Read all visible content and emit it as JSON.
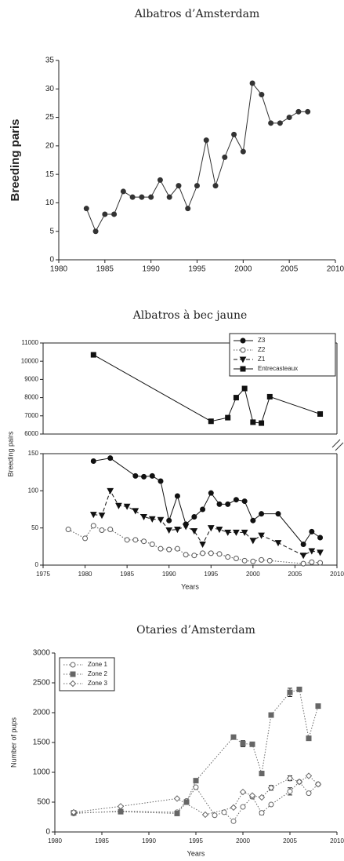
{
  "chart_data": [
    {
      "type": "line",
      "title": "Albatros d’Amsterdam",
      "ylabel": "Breeding paris",
      "xlim": [
        1980,
        2010
      ],
      "xticks": [
        1980,
        1985,
        1990,
        1995,
        2000,
        2005,
        2010
      ],
      "ylim": [
        0,
        35
      ],
      "yticks": [
        0,
        5,
        10,
        15,
        20,
        25,
        30,
        35
      ],
      "series": [
        {
          "color": "#333333",
          "marker": "circle",
          "dash": "solid",
          "x": [
            1983,
            1984,
            1985,
            1986,
            1987,
            1988,
            1989,
            1990,
            1991,
            1992,
            1993,
            1994,
            1995,
            1996,
            1997,
            1998,
            1999,
            2000,
            2001,
            2002,
            2003,
            2004,
            2005,
            2006,
            2007
          ],
          "values": [
            9,
            5,
            8,
            8,
            12,
            11,
            11,
            11,
            14,
            11,
            13,
            9,
            13,
            21,
            13,
            18,
            22,
            19,
            31,
            29,
            24,
            24,
            25,
            26,
            26
          ]
        }
      ]
    },
    {
      "type": "line",
      "title": "Albatros à bec jaune",
      "ylabel": "Breeding pairs",
      "xlabel": "Years",
      "xlim": [
        1975,
        2010
      ],
      "xticks": [
        1975,
        1980,
        1985,
        1990,
        1995,
        2000,
        2005,
        2010
      ],
      "ylim_lower": [
        0,
        150
      ],
      "yticks_lower": [
        0,
        50,
        100,
        150
      ],
      "ylim_upper": [
        6000,
        11000
      ],
      "yticks_upper": [
        6000,
        7000,
        8000,
        9000,
        10000,
        11000
      ],
      "frame": true,
      "legend": "upper right",
      "series": [
        {
          "name": "Z3",
          "color": "#111111",
          "marker": "circle",
          "dash": "solid",
          "x": [
            1981,
            1983,
            1986,
            1987,
            1988,
            1989,
            1990,
            1991,
            1992,
            1993,
            1994,
            1995,
            1996,
            1997,
            1998,
            1999,
            2000,
            2001,
            2003,
            2006,
            2007,
            2008
          ],
          "values": [
            140,
            144,
            120,
            119,
            120,
            113,
            60,
            93,
            55,
            65,
            75,
            97,
            82,
            82,
            88,
            86,
            60,
            69,
            69,
            28,
            45,
            37
          ]
        },
        {
          "name": "Z2",
          "color": "#555555",
          "marker": "circle-open",
          "dash": "dotted",
          "x": [
            1978,
            1980,
            1981,
            1982,
            1983,
            1985,
            1986,
            1987,
            1988,
            1989,
            1990,
            1991,
            1992,
            1993,
            1994,
            1995,
            1996,
            1997,
            1998,
            1999,
            2000,
            2001,
            2002,
            2006,
            2007,
            2008
          ],
          "values": [
            48,
            36,
            53,
            47,
            48,
            34,
            34,
            32,
            28,
            22,
            21,
            22,
            14,
            13,
            16,
            16,
            15,
            11,
            9,
            6,
            5,
            7,
            6,
            2,
            4,
            3
          ]
        },
        {
          "name": "Z1",
          "color": "#111111",
          "marker": "triangle-down",
          "dash": "dashed",
          "x": [
            1981,
            1982,
            1983,
            1984,
            1985,
            1986,
            1987,
            1988,
            1989,
            1990,
            1991,
            1992,
            1993,
            1994,
            1995,
            1996,
            1997,
            1998,
            1999,
            2000,
            2001,
            2003,
            2006,
            2007,
            2008
          ],
          "values": [
            68,
            67,
            100,
            80,
            79,
            73,
            65,
            62,
            61,
            47,
            48,
            52,
            46,
            28,
            50,
            48,
            44,
            44,
            44,
            33,
            40,
            30,
            13,
            19,
            17
          ]
        },
        {
          "name": "Entrecasteaux",
          "color": "#111111",
          "marker": "square",
          "dash": "solid",
          "axis": "upper",
          "x": [
            1981,
            1995,
            1997,
            1998,
            1999,
            2000,
            2001,
            2002,
            2008
          ],
          "values": [
            10350,
            6700,
            6900,
            8000,
            8500,
            6650,
            6600,
            8050,
            7100
          ]
        }
      ]
    },
    {
      "type": "line",
      "title": "Otaries d’Amsterdam",
      "ylabel": "Number of pups",
      "xlabel": "Years",
      "xlim": [
        1980,
        2010
      ],
      "xticks": [
        1980,
        1985,
        1990,
        1995,
        2000,
        2005,
        2010
      ],
      "ylim": [
        0,
        3000
      ],
      "yticks": [
        0,
        500,
        1000,
        1500,
        2000,
        2500,
        3000
      ],
      "legend": "upper left",
      "series": [
        {
          "name": "Zone 1",
          "color": "#666666",
          "marker": "circle-open",
          "dash": "dotted",
          "x": [
            1982,
            1987,
            1993,
            1994,
            1995,
            1997,
            1998,
            1999,
            2000,
            2001,
            2002,
            2003,
            2005,
            2006,
            2007,
            2008
          ],
          "values": [
            310,
            350,
            330,
            520,
            750,
            280,
            330,
            180,
            420,
            590,
            320,
            460,
            680,
            840,
            650,
            800
          ],
          "errors": [
            null,
            null,
            null,
            null,
            null,
            null,
            null,
            null,
            null,
            null,
            30,
            null,
            60,
            null,
            null,
            null
          ]
        },
        {
          "name": "Zone 2",
          "color": "#666666",
          "marker": "square",
          "dash": "dotted",
          "x": [
            1982,
            1987,
            1993,
            1994,
            1995,
            1999,
            2000,
            2001,
            2002,
            2003,
            2005,
            2006,
            2007,
            2008
          ],
          "values": [
            320,
            340,
            310,
            500,
            860,
            1590,
            1480,
            1470,
            980,
            1960,
            2340,
            2390,
            1570,
            2110
          ],
          "errors": [
            null,
            null,
            null,
            null,
            null,
            null,
            50,
            null,
            null,
            null,
            70,
            null,
            30,
            25
          ]
        },
        {
          "name": "Zone 3",
          "color": "#666666",
          "marker": "diamond-open",
          "dash": "dotted",
          "x": [
            1982,
            1987,
            1993,
            1996,
            1999,
            2000,
            2001,
            2002,
            2003,
            2005,
            2006,
            2007,
            2008
          ],
          "values": [
            330,
            430,
            560,
            290,
            410,
            670,
            610,
            580,
            740,
            900,
            840,
            940,
            800
          ],
          "errors": [
            null,
            null,
            null,
            null,
            null,
            null,
            null,
            null,
            40,
            40,
            null,
            null,
            null
          ]
        }
      ]
    }
  ]
}
